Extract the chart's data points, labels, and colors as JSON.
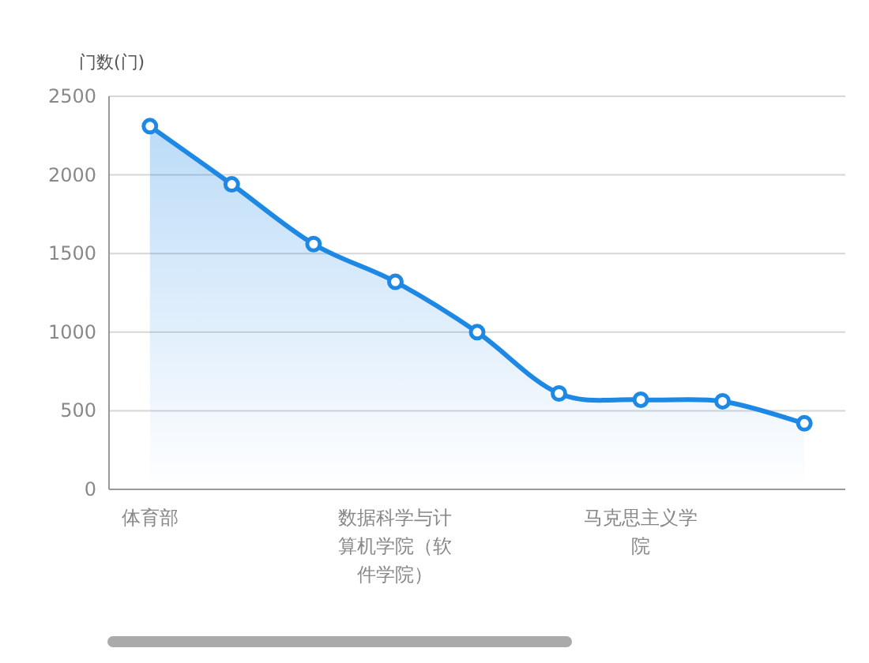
{
  "chart_data": {
    "type": "area",
    "ylabel": "门数(门)",
    "categories": [
      "体育部",
      null,
      null,
      "数据科学与计算机学院（软件学院）",
      null,
      null,
      "马克思主义学院",
      null,
      null
    ],
    "series": [
      {
        "color": "#1e88e5",
        "values": [
          2310,
          1940,
          1560,
          1320,
          1000,
          610,
          570,
          560,
          420
        ]
      }
    ],
    "ylim": [
      0,
      2500
    ],
    "yticks": [
      0,
      500,
      1000,
      1500,
      2000,
      2500
    ],
    "grid": "y",
    "marker": "circle"
  }
}
